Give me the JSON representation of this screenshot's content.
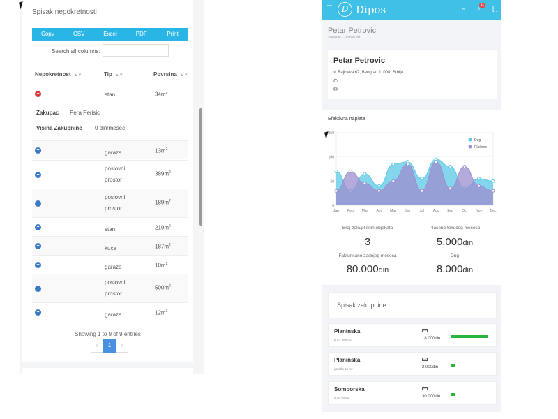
{
  "left": {
    "title": "Spisak nepokretnosti",
    "export_buttons": [
      "Copy",
      "CSV",
      "Excel",
      "PDF",
      "Print"
    ],
    "search_label": "Search all columns:",
    "search_value": "",
    "columns": [
      "Nepokretnost",
      "Tip",
      "Povrsina"
    ],
    "sort_icon": "sort-arrows-icon",
    "expanded_row": {
      "tip": "stan",
      "povrsina": "34m",
      "sup": "2",
      "zakupac_label": "Zakupac",
      "zakupac_value": "Pera Perisic",
      "visina_label": "Visina Zakupnine",
      "visina_value": "0 din/mesec"
    },
    "rows": [
      {
        "tip": [
          "garaza"
        ],
        "povrsina": "13m",
        "sup": "2"
      },
      {
        "tip": [
          "poslovni",
          "prostor"
        ],
        "povrsina": "389m",
        "sup": "2"
      },
      {
        "tip": [
          "poslovni",
          "prostor"
        ],
        "povrsina": "189m",
        "sup": "2"
      },
      {
        "tip": [
          "stan"
        ],
        "povrsina": "219m",
        "sup": "2"
      },
      {
        "tip": [
          "kuca"
        ],
        "povrsina": "187m",
        "sup": "2"
      },
      {
        "tip": [
          "garaza"
        ],
        "povrsina": "10m",
        "sup": "2"
      },
      {
        "tip": [
          "poslovni",
          "prostor"
        ],
        "povrsina": "500m",
        "sup": "2"
      },
      {
        "tip": [
          "garaza"
        ],
        "povrsina": "12m",
        "sup": "2"
      }
    ],
    "showing": "Showing 1 to 9 of 9 entries",
    "pager": {
      "prev": "‹",
      "page": "1",
      "next": "›"
    }
  },
  "right": {
    "app_name": "Dipos",
    "logo_letter": "D",
    "notification_count": "11",
    "page_title": "Petar Petrovic",
    "breadcrumb": "zakupac › Toščeo list",
    "profile": {
      "name": "Petar Petrovic",
      "address": "Rajiceva 67, Beograd 11000, Srbija"
    },
    "chart_title": "Efektivna naplata",
    "stats": [
      {
        "label": "Broj zakupljenih objekata",
        "value": "3",
        "unit": ""
      },
      {
        "label": "Plaćeno tekućeg meseca",
        "value": "5.000",
        "unit": "din"
      },
      {
        "label": "Fakturisano zadnjeg meseca",
        "value": "80.000",
        "unit": "din"
      },
      {
        "label": "Dug",
        "value": "8.000",
        "unit": "din"
      }
    ],
    "rent_title": "Spisak zakupnine",
    "rents": [
      {
        "name": "Planinska",
        "sub": "kuća 250 m²",
        "amount": "18.000din",
        "fraction": 1.0
      },
      {
        "name": "Planinska",
        "sub": "garaža 15 m²",
        "amount": "2.000din",
        "fraction": 0.09
      },
      {
        "name": "Somborska",
        "sub": "stan 38 m²",
        "amount": "30.000din",
        "fraction": 0.09
      }
    ]
  },
  "chart_data": {
    "type": "area",
    "title": "Efektivna naplata",
    "categories": [
      "Jan",
      "Feb",
      "Mar",
      "Apr",
      "May",
      "Jun",
      "Jul",
      "Aug",
      "Sep",
      "Oct",
      "Nov",
      "Dec"
    ],
    "ylim": [
      0,
      150
    ],
    "yticks": [
      0,
      50,
      100,
      150
    ],
    "legend_position": "top-right",
    "series": [
      {
        "name": "Dug",
        "color": "#5bc8e6",
        "values": [
          70,
          30,
          65,
          40,
          85,
          90,
          55,
          95,
          80,
          35,
          55,
          50
        ]
      },
      {
        "name": "Plaćeno",
        "color": "#9c8ed0",
        "values": [
          30,
          70,
          45,
          30,
          50,
          85,
          30,
          90,
          35,
          80,
          40,
          30
        ]
      }
    ]
  },
  "icons": {
    "menu": "☰",
    "search": "⌕",
    "bell": "♪",
    "expand": "[ ]",
    "pin": "⚲",
    "phone": "✆",
    "mail": "✉",
    "money": "▭"
  },
  "colors": {
    "accent": "#29b6e6",
    "topbar": "#3fc0e6",
    "plus_button": "#3a79c5",
    "minus_button": "#d9383a",
    "progress": "#2bb73f"
  }
}
